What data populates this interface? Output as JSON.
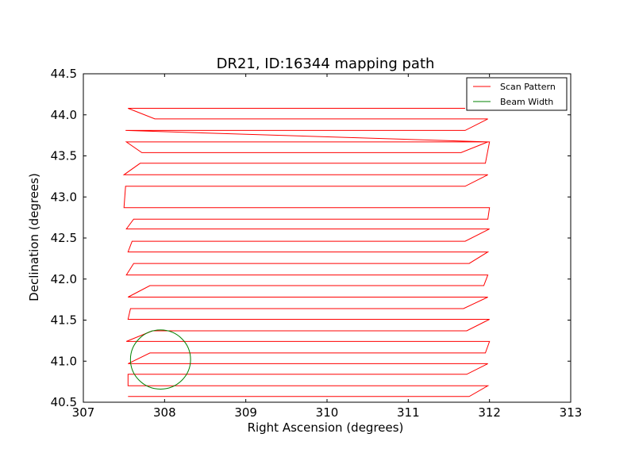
{
  "chart_data": {
    "type": "line",
    "title": "DR21, ID:16344 mapping path",
    "xlabel": "Right Ascension (degrees)",
    "ylabel": "Declination (degrees)",
    "xlim": [
      307,
      313
    ],
    "ylim": [
      40.5,
      44.5
    ],
    "xticks": [
      307,
      308,
      309,
      310,
      311,
      312,
      313
    ],
    "yticks": [
      40.5,
      41.0,
      41.5,
      42.0,
      42.5,
      43.0,
      43.5,
      44.0,
      44.5
    ],
    "xtick_labels": [
      "307",
      "308",
      "309",
      "310",
      "311",
      "312",
      "313"
    ],
    "ytick_labels": [
      "40.5",
      "41.0",
      "41.5",
      "42.0",
      "42.5",
      "43.0",
      "43.5",
      "44.0",
      "44.5"
    ],
    "grid": false,
    "legend": {
      "position": "top-right",
      "entries": [
        {
          "name": "Scan Pattern",
          "color": "#ff0000"
        },
        {
          "name": "Beam Width",
          "color": "#008000"
        }
      ]
    },
    "series": [
      {
        "name": "Scan Pattern",
        "color": "#ff0000",
        "x": [
          311.7,
          307.55,
          307.88,
          311.98,
          311.7,
          307.88,
          307.52,
          311.98,
          311.65,
          307.72,
          307.53,
          312.0,
          311.95,
          307.7,
          307.5,
          311.98,
          311.7,
          307.52,
          307.5,
          312.0,
          311.98,
          307.62,
          307.53,
          312.0,
          311.7,
          307.6,
          307.55,
          311.98,
          311.75,
          307.62,
          307.53,
          311.98,
          311.93,
          307.82,
          307.55,
          311.98,
          311.68,
          307.58,
          307.55,
          312.0,
          311.72,
          307.85,
          307.53,
          312.0,
          311.95,
          307.82,
          307.55,
          311.98,
          311.72,
          307.55,
          307.55,
          311.98,
          311.75,
          307.55
        ],
        "y": [
          44.08,
          44.08,
          43.95,
          43.95,
          43.81,
          43.81,
          43.81,
          43.67,
          43.54,
          43.54,
          43.67,
          43.67,
          43.41,
          43.41,
          43.27,
          43.27,
          43.13,
          43.13,
          42.87,
          42.87,
          42.73,
          42.73,
          42.61,
          42.61,
          42.46,
          42.46,
          42.33,
          42.33,
          42.19,
          42.19,
          42.05,
          42.05,
          41.92,
          41.92,
          41.78,
          41.78,
          41.64,
          41.64,
          41.51,
          41.51,
          41.37,
          41.37,
          41.24,
          41.24,
          41.1,
          41.1,
          40.97,
          40.97,
          40.84,
          40.84,
          40.7,
          40.7,
          40.57,
          40.57
        ]
      }
    ],
    "circles": [
      {
        "name": "Beam Width",
        "color": "#008000",
        "cx": 307.95,
        "cy": 41.02,
        "r_x": 0.37,
        "r_y": 0.36
      }
    ]
  }
}
